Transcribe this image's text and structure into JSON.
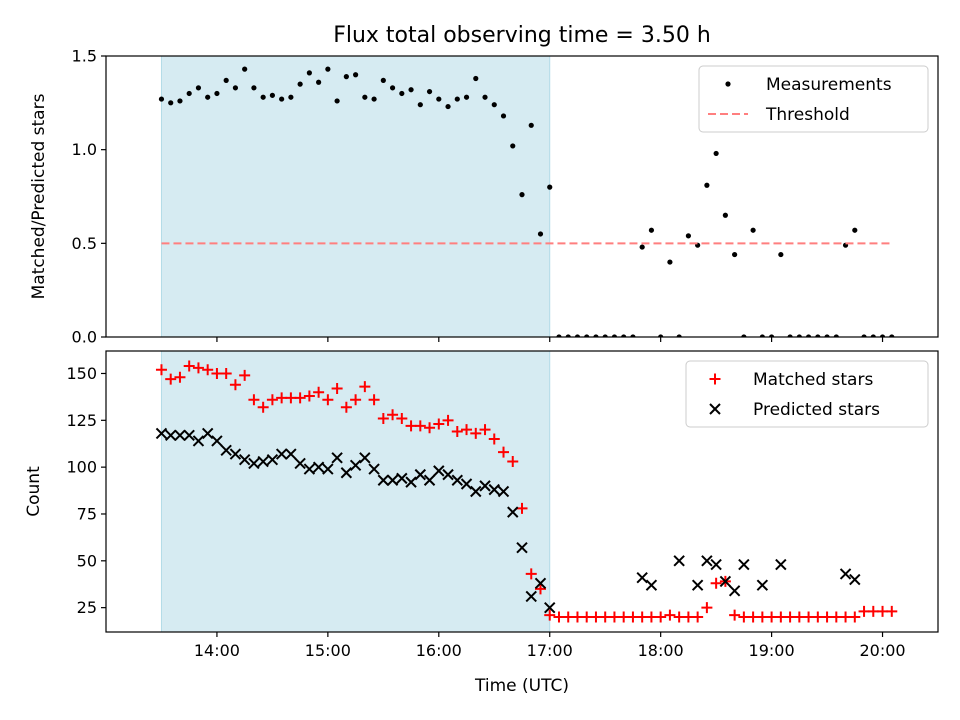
{
  "chart_data": {
    "title": "Flux total observing time = 3.50 h",
    "x_axis": {
      "label": "Time (UTC)",
      "range": [
        "13:00",
        "20:30"
      ],
      "ticks": [
        "14:00",
        "15:00",
        "16:00",
        "17:00",
        "18:00",
        "19:00",
        "20:00"
      ]
    },
    "shaded_interval": {
      "start": "13:30",
      "end": "17:00",
      "color": "#add8e6"
    },
    "panels": [
      {
        "type": "scatter",
        "ylabel": "Matched/Predicted stars",
        "ylim": [
          0,
          1.5
        ],
        "yticks": [
          "0.0",
          "0.5",
          "1.0",
          "1.5"
        ],
        "legend_position": "top-right",
        "series": [
          {
            "name": "Measurements",
            "marker": "dot",
            "color": "#000000",
            "x": [
              "13:30",
              "13:35",
              "13:40",
              "13:45",
              "13:50",
              "13:55",
              "14:00",
              "14:05",
              "14:10",
              "14:15",
              "14:20",
              "14:25",
              "14:30",
              "14:35",
              "14:40",
              "14:45",
              "14:50",
              "14:55",
              "15:00",
              "15:05",
              "15:10",
              "15:15",
              "15:20",
              "15:25",
              "15:30",
              "15:35",
              "15:40",
              "15:45",
              "15:50",
              "15:55",
              "16:00",
              "16:05",
              "16:10",
              "16:15",
              "16:20",
              "16:25",
              "16:30",
              "16:35",
              "16:40",
              "16:45",
              "16:50",
              "16:55",
              "17:00",
              "17:05",
              "17:10",
              "17:15",
              "17:20",
              "17:25",
              "17:30",
              "17:35",
              "17:40",
              "17:45",
              "17:50",
              "17:55",
              "18:00",
              "18:05",
              "18:10",
              "18:15",
              "18:20",
              "18:25",
              "18:30",
              "18:35",
              "18:40",
              "18:45",
              "18:50",
              "18:55",
              "19:00",
              "19:05",
              "19:10",
              "19:15",
              "19:20",
              "19:25",
              "19:30",
              "19:35",
              "19:40",
              "19:45",
              "19:50",
              "19:55",
              "20:00",
              "20:05"
            ],
            "y": [
              1.27,
              1.25,
              1.26,
              1.3,
              1.33,
              1.28,
              1.3,
              1.37,
              1.33,
              1.43,
              1.33,
              1.28,
              1.29,
              1.27,
              1.28,
              1.35,
              1.41,
              1.36,
              1.43,
              1.26,
              1.39,
              1.4,
              1.28,
              1.27,
              1.37,
              1.33,
              1.3,
              1.32,
              1.24,
              1.31,
              1.27,
              1.23,
              1.27,
              1.28,
              1.38,
              1.28,
              1.24,
              1.18,
              1.02,
              0.76,
              1.13,
              0.55,
              0.8,
              0,
              0,
              0,
              0,
              0,
              0,
              0,
              0,
              0,
              0.48,
              0.57,
              0,
              0.4,
              0,
              0.54,
              0.49,
              0.81,
              0.98,
              0.65,
              0.44,
              0,
              0.57,
              0,
              0,
              0.44,
              0,
              0,
              0,
              0,
              0,
              0,
              0.49,
              0.57,
              0,
              0,
              0,
              0
            ]
          },
          {
            "name": "Threshold",
            "marker": "dashed-line",
            "color": "#ff7f7f",
            "x": [
              "13:30",
              "20:05"
            ],
            "y": [
              0.5,
              0.5
            ]
          }
        ]
      },
      {
        "type": "scatter",
        "ylabel": "Count",
        "ylim": [
          12,
          162
        ],
        "yticks": [
          "25",
          "50",
          "75",
          "100",
          "125",
          "150"
        ],
        "legend_position": "top-right",
        "series": [
          {
            "name": "Matched stars",
            "marker": "plus",
            "color": "#ff0000",
            "x": [
              "13:30",
              "13:35",
              "13:40",
              "13:45",
              "13:50",
              "13:55",
              "14:00",
              "14:05",
              "14:10",
              "14:15",
              "14:20",
              "14:25",
              "14:30",
              "14:35",
              "14:40",
              "14:45",
              "14:50",
              "14:55",
              "15:00",
              "15:05",
              "15:10",
              "15:15",
              "15:20",
              "15:25",
              "15:30",
              "15:35",
              "15:40",
              "15:45",
              "15:50",
              "15:55",
              "16:00",
              "16:05",
              "16:10",
              "16:15",
              "16:20",
              "16:25",
              "16:30",
              "16:35",
              "16:40",
              "16:45",
              "16:50",
              "16:55",
              "17:00",
              "17:05",
              "17:10",
              "17:15",
              "17:20",
              "17:25",
              "17:30",
              "17:35",
              "17:40",
              "17:45",
              "17:50",
              "17:55",
              "18:00",
              "18:05",
              "18:10",
              "18:15",
              "18:20",
              "18:25",
              "18:30",
              "18:35",
              "18:40",
              "18:45",
              "18:50",
              "18:55",
              "19:00",
              "19:05",
              "19:10",
              "19:15",
              "19:20",
              "19:25",
              "19:30",
              "19:35",
              "19:40",
              "19:45",
              "19:50",
              "19:55",
              "20:00",
              "20:05"
            ],
            "y": [
              152,
              147,
              148,
              154,
              153,
              152,
              150,
              150,
              144,
              149,
              136,
              132,
              136,
              137,
              137,
              137,
              138,
              140,
              136,
              142,
              132,
              136,
              143,
              136,
              126,
              128,
              126,
              122,
              122,
              121,
              123,
              125,
              119,
              120,
              118,
              120,
              115,
              108,
              103,
              78,
              43,
              35,
              21,
              20,
              20,
              20,
              20,
              20,
              20,
              20,
              20,
              20,
              20,
              20,
              20,
              21,
              20,
              20,
              20,
              25,
              38,
              39,
              21,
              20,
              20,
              20,
              20,
              20,
              20,
              20,
              20,
              20,
              20,
              20,
              20,
              20,
              23,
              23,
              23,
              23
            ]
          },
          {
            "name": "Predicted stars",
            "marker": "x",
            "color": "#000000",
            "x": [
              "13:30",
              "13:35",
              "13:40",
              "13:45",
              "13:50",
              "13:55",
              "14:00",
              "14:05",
              "14:10",
              "14:15",
              "14:20",
              "14:25",
              "14:30",
              "14:35",
              "14:40",
              "14:45",
              "14:50",
              "14:55",
              "15:00",
              "15:05",
              "15:10",
              "15:15",
              "15:20",
              "15:25",
              "15:30",
              "15:35",
              "15:40",
              "15:45",
              "15:50",
              "15:55",
              "16:00",
              "16:05",
              "16:10",
              "16:15",
              "16:20",
              "16:25",
              "16:30",
              "16:35",
              "16:40",
              "16:45",
              "16:50",
              "16:55",
              "17:00",
              "17:50",
              "17:55",
              "18:10",
              "18:20",
              "18:25",
              "18:30",
              "18:35",
              "18:40",
              "18:45",
              "18:55",
              "19:05",
              "19:40",
              "19:45"
            ],
            "y": [
              118,
              117,
              117,
              117,
              114,
              118,
              114,
              109,
              107,
              104,
              102,
              103,
              104,
              107,
              107,
              102,
              99,
              100,
              99,
              105,
              97,
              101,
              105,
              99,
              93,
              93,
              94,
              92,
              96,
              93,
              98,
              96,
              93,
              91,
              87,
              90,
              88,
              87,
              76,
              57,
              31,
              38,
              25,
              41,
              37,
              50,
              37,
              50,
              48,
              39,
              34,
              48,
              37,
              48,
              43,
              40
            ]
          }
        ]
      }
    ]
  }
}
